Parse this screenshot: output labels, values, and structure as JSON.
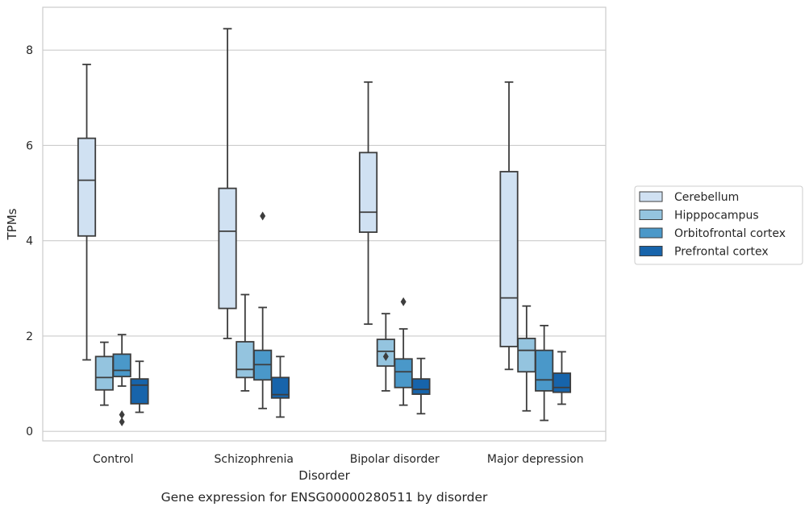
{
  "chart_data": {
    "type": "boxplot",
    "title": "",
    "caption": "Gene expression for ENSG00000280511 by disorder",
    "xlabel": "Disorder",
    "ylabel": "TPMs",
    "ylim": [
      -0.2,
      8.9
    ],
    "yticks": [
      0,
      2,
      4,
      6,
      8
    ],
    "grid": true,
    "legend_position": "right",
    "categories": [
      "Control",
      "Schizophrenia",
      "Bipolar disorder",
      "Major depression"
    ],
    "series": [
      {
        "name": "Cerebellum",
        "color": "#d0e1f2",
        "boxes": [
          {
            "whislo": 1.5,
            "q1": 4.1,
            "med": 5.27,
            "q3": 6.15,
            "whishi": 7.7,
            "fliers": []
          },
          {
            "whislo": 1.95,
            "q1": 2.58,
            "med": 4.2,
            "q3": 5.1,
            "whishi": 8.45,
            "fliers": []
          },
          {
            "whislo": 2.25,
            "q1": 4.18,
            "med": 4.6,
            "q3": 5.85,
            "whishi": 7.33,
            "fliers": []
          },
          {
            "whislo": 1.3,
            "q1": 1.78,
            "med": 2.8,
            "q3": 5.45,
            "whishi": 7.33,
            "fliers": []
          }
        ]
      },
      {
        "name": "Hipppocampus",
        "color": "#94c4df",
        "boxes": [
          {
            "whislo": 0.55,
            "q1": 0.87,
            "med": 1.13,
            "q3": 1.57,
            "whishi": 1.87,
            "fliers": []
          },
          {
            "whislo": 0.85,
            "q1": 1.13,
            "med": 1.3,
            "q3": 1.88,
            "whishi": 2.87,
            "fliers": []
          },
          {
            "whislo": 0.85,
            "q1": 1.37,
            "med": 1.68,
            "q3": 1.93,
            "whishi": 2.47,
            "fliers": [
              1.57
            ]
          },
          {
            "whislo": 0.43,
            "q1": 1.25,
            "med": 1.7,
            "q3": 1.95,
            "whishi": 2.63,
            "fliers": []
          }
        ]
      },
      {
        "name": "Orbitofrontal cortex",
        "color": "#4a98c9",
        "boxes": [
          {
            "whislo": 0.95,
            "q1": 1.15,
            "med": 1.28,
            "q3": 1.62,
            "whishi": 2.03,
            "fliers": [
              0.35,
              0.2
            ]
          },
          {
            "whislo": 0.48,
            "q1": 1.08,
            "med": 1.4,
            "q3": 1.7,
            "whishi": 2.6,
            "fliers": [
              4.52
            ]
          },
          {
            "whislo": 0.55,
            "q1": 0.92,
            "med": 1.25,
            "q3": 1.52,
            "whishi": 2.15,
            "fliers": [
              2.72
            ]
          },
          {
            "whislo": 0.23,
            "q1": 0.85,
            "med": 1.08,
            "q3": 1.7,
            "whishi": 2.22,
            "fliers": []
          }
        ]
      },
      {
        "name": "Prefrontal cortex",
        "color": "#1764ab",
        "boxes": [
          {
            "whislo": 0.4,
            "q1": 0.58,
            "med": 0.97,
            "q3": 1.1,
            "whishi": 1.47,
            "fliers": []
          },
          {
            "whislo": 0.3,
            "q1": 0.7,
            "med": 0.77,
            "q3": 1.13,
            "whishi": 1.57,
            "fliers": []
          },
          {
            "whislo": 0.37,
            "q1": 0.78,
            "med": 0.88,
            "q3": 1.1,
            "whishi": 1.53,
            "fliers": []
          },
          {
            "whislo": 0.57,
            "q1": 0.82,
            "med": 0.92,
            "q3": 1.22,
            "whishi": 1.67,
            "fliers": []
          }
        ]
      }
    ]
  }
}
